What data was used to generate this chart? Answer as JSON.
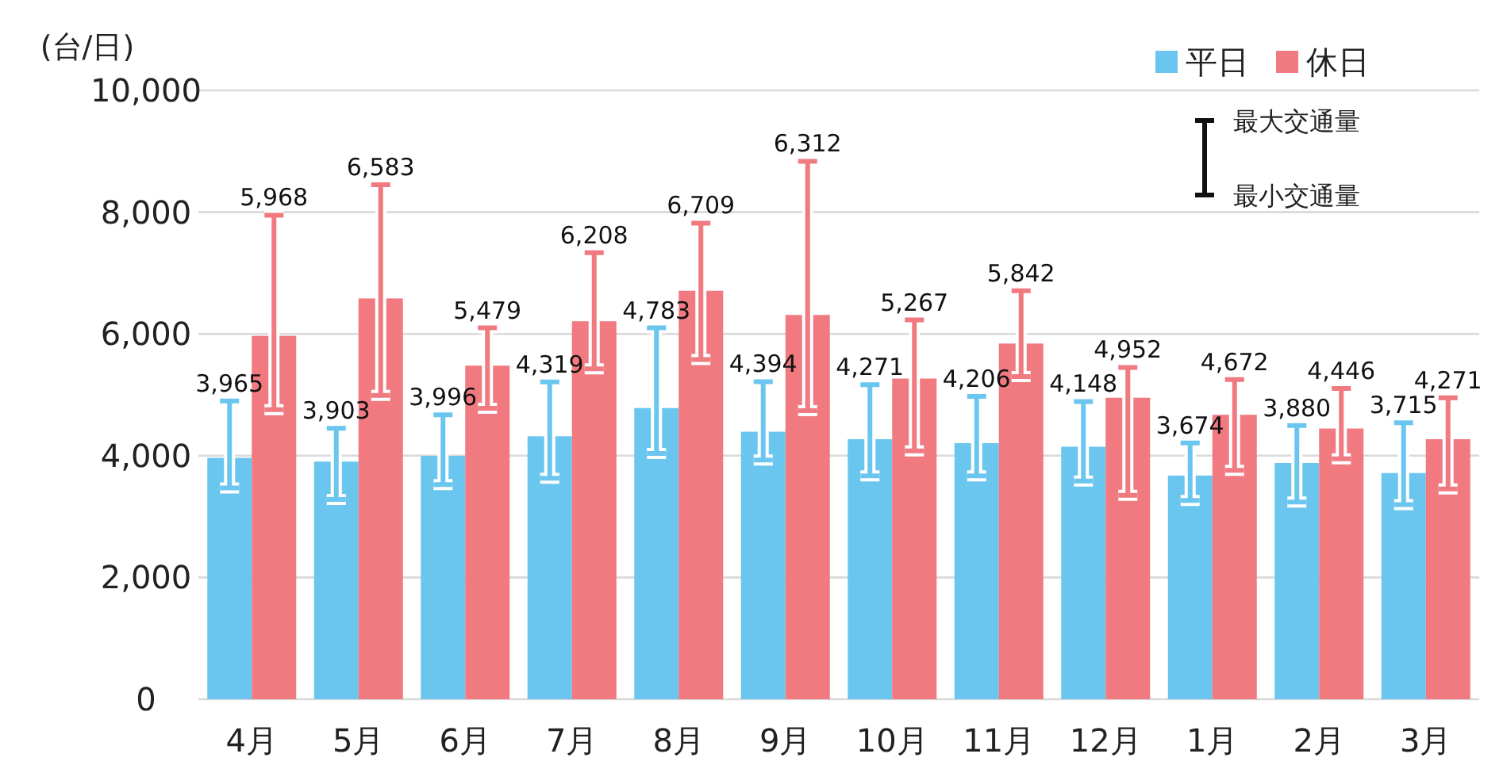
{
  "chart_data": {
    "type": "bar",
    "ylabel": "(台/日)",
    "categories": [
      "4月",
      "5月",
      "6月",
      "7月",
      "8月",
      "9月",
      "10月",
      "11月",
      "12月",
      "1月",
      "2月",
      "3月"
    ],
    "series": [
      {
        "name": "平日",
        "color": "#6ac6ef",
        "values": [
          3965,
          3903,
          3996,
          4319,
          4783,
          4394,
          4271,
          4206,
          4148,
          3674,
          3880,
          3715
        ],
        "value_labels": [
          "3,965",
          "3,903",
          "3,996",
          "4,319",
          "4,783",
          "4,394",
          "4,271",
          "4,206",
          "4,148",
          "3,674",
          "3,880",
          "3,715"
        ],
        "errors": [
          [
            3470,
            4900
          ],
          [
            3280,
            4450
          ],
          [
            3525,
            4670
          ],
          [
            3630,
            5210
          ],
          [
            4035,
            6100
          ],
          [
            3930,
            5215
          ],
          [
            3670,
            5165
          ],
          [
            3670,
            4975
          ],
          [
            3585,
            4890
          ],
          [
            3265,
            4210
          ],
          [
            3240,
            4495
          ],
          [
            3195,
            4540
          ]
        ]
      },
      {
        "name": "休日",
        "color": "#f07a80",
        "values": [
          5968,
          6583,
          5479,
          6208,
          6709,
          6312,
          5267,
          5842,
          4952,
          4672,
          4446,
          4271
        ],
        "value_labels": [
          "5,968",
          "6,583",
          "5,479",
          "6,208",
          "6,709",
          "6,312",
          "5,267",
          "5,842",
          "4,952",
          "4,672",
          "4,446",
          "4,271"
        ],
        "errors": [
          [
            4755,
            7950
          ],
          [
            4990,
            8450
          ],
          [
            4780,
            6100
          ],
          [
            5425,
            7335
          ],
          [
            5580,
            7820
          ],
          [
            4740,
            8835
          ],
          [
            4080,
            6230
          ],
          [
            5300,
            6710
          ],
          [
            3350,
            5450
          ],
          [
            3760,
            5250
          ],
          [
            3950,
            5105
          ],
          [
            3455,
            4950
          ]
        ]
      }
    ],
    "ylim": [
      0,
      10000
    ],
    "yticks": [
      {
        "value": 0,
        "label": "0"
      },
      {
        "value": 2000,
        "label": "2,000"
      },
      {
        "value": 4000,
        "label": "4,000"
      },
      {
        "value": 6000,
        "label": "6,000"
      },
      {
        "value": 8000,
        "label": "8,000"
      },
      {
        "value": 10000,
        "label": "10,000"
      }
    ],
    "grid": "y",
    "legend": "top right",
    "annotations": [
      "最大交通量",
      "最小交通量"
    ]
  }
}
